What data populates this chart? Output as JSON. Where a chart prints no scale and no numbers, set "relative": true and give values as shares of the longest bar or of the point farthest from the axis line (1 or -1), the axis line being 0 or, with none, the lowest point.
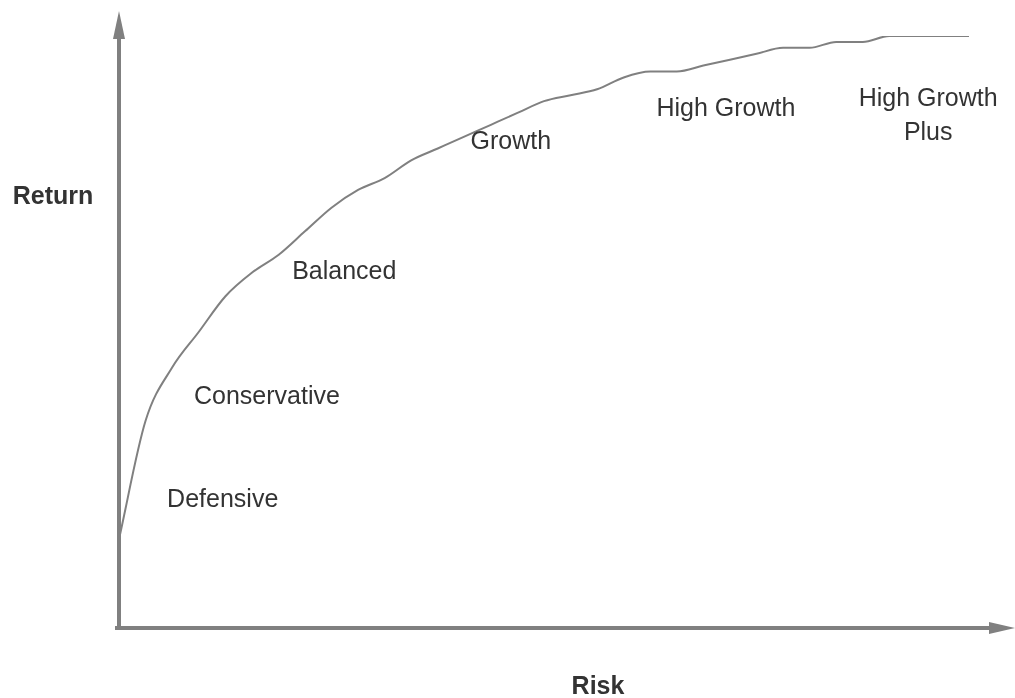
{
  "chart_data": {
    "type": "line",
    "relative": true,
    "xlabel": "Risk",
    "ylabel": "Return",
    "categories": [
      null,
      null,
      null,
      null,
      null,
      null,
      null,
      null,
      null,
      null,
      null,
      null,
      null,
      null,
      null,
      null,
      null,
      null,
      null,
      null,
      null,
      null,
      null,
      null,
      null,
      null,
      null,
      null,
      null,
      null,
      null,
      null,
      null
    ],
    "series": [
      {
        "color": "#808080",
        "values": [
          0.15,
          0.35,
          0.44,
          0.5,
          0.56,
          0.6,
          0.63,
          0.67,
          0.71,
          0.74,
          0.76,
          0.79,
          0.81,
          0.83,
          0.85,
          0.87,
          0.89,
          0.9,
          0.91,
          0.93,
          0.94,
          0.94,
          0.95,
          0.96,
          0.97,
          0.98,
          0.98,
          0.99,
          0.99,
          1.0,
          1.0,
          1.0,
          1.0
        ]
      }
    ],
    "annotations": [
      "Defensive",
      "Conservative",
      "Balanced",
      "Growth",
      "High Growth",
      "High Growth Plus"
    ],
    "legend": false
  }
}
